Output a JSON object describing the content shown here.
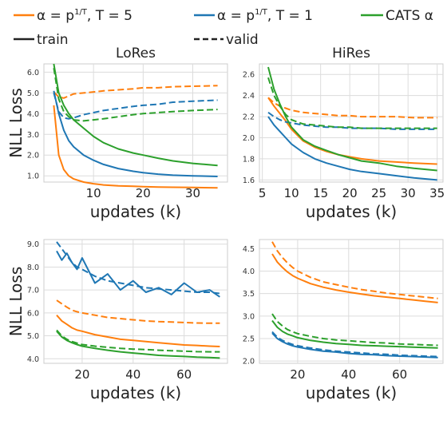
{
  "legend": {
    "entries": [
      {
        "label": "α = p^(1/T), T = 5",
        "color": "#ff7f0e",
        "dash": false
      },
      {
        "label": "α = p^(1/T), T = 1",
        "color": "#1f77b4",
        "dash": false
      },
      {
        "label": "CATS α",
        "color": "#2ca02c",
        "dash": false
      },
      {
        "label": "train",
        "color": "#222222",
        "dash": false
      },
      {
        "label": "valid",
        "color": "#222222",
        "dash": true
      }
    ]
  },
  "colors": {
    "t5": "#ff7f0e",
    "t1": "#1f77b4",
    "cats": "#2ca02c",
    "grid": "#dcdcdc"
  },
  "chart_data": [
    {
      "type": "line",
      "title": "LoRes",
      "xlabel": "updates (k)",
      "ylabel": "NLL Loss",
      "xlim": [
        0,
        37
      ],
      "ylim": [
        0.7,
        6.4
      ],
      "xticks": [
        10,
        20,
        30
      ],
      "yticks": [
        1.0,
        2.0,
        3.0,
        4.0,
        5.0,
        6.0
      ],
      "ytick_labels": [
        "1.0",
        "2.0",
        "3.0",
        "4.0",
        "5.0",
        "6.0"
      ],
      "grid": true,
      "x": [
        2,
        3,
        4,
        5,
        6,
        8,
        10,
        12,
        15,
        18,
        20,
        23,
        26,
        30,
        35
      ],
      "series": [
        {
          "color_key": "t5",
          "dash": false,
          "values": [
            4.4,
            2.0,
            1.3,
            1.0,
            0.85,
            0.7,
            0.62,
            0.56,
            0.52,
            0.5,
            0.48,
            0.46,
            0.45,
            0.44,
            0.42
          ]
        },
        {
          "color_key": "t5",
          "dash": true,
          "values": [
            5.05,
            4.8,
            4.75,
            4.85,
            4.95,
            5.0,
            5.05,
            5.1,
            5.15,
            5.2,
            5.25,
            5.25,
            5.3,
            5.32,
            5.35
          ]
        },
        {
          "color_key": "t1",
          "dash": false,
          "values": [
            5.1,
            4.0,
            3.2,
            2.7,
            2.4,
            2.0,
            1.75,
            1.55,
            1.35,
            1.22,
            1.15,
            1.08,
            1.03,
            1.0,
            0.97
          ]
        },
        {
          "color_key": "t1",
          "dash": true,
          "values": [
            5.0,
            4.1,
            3.8,
            3.75,
            3.8,
            3.95,
            4.05,
            4.15,
            4.25,
            4.35,
            4.4,
            4.45,
            4.55,
            4.6,
            4.65
          ]
        },
        {
          "color_key": "cats",
          "dash": false,
          "values": [
            6.4,
            5.0,
            4.4,
            4.0,
            3.7,
            3.3,
            2.9,
            2.6,
            2.3,
            2.1,
            2.0,
            1.85,
            1.72,
            1.6,
            1.5
          ]
        },
        {
          "color_key": "cats",
          "dash": true,
          "values": [
            6.2,
            4.7,
            4.1,
            3.85,
            3.7,
            3.65,
            3.7,
            3.75,
            3.85,
            3.95,
            4.0,
            4.05,
            4.1,
            4.15,
            4.2
          ]
        }
      ]
    },
    {
      "type": "line",
      "title": "HiRes",
      "xlabel": "updates (k)",
      "ylabel": "",
      "xlim": [
        4.5,
        36
      ],
      "ylim": [
        1.58,
        2.7
      ],
      "xticks": [
        5,
        10,
        15,
        20,
        25,
        30,
        35
      ],
      "yticks": [
        1.6,
        1.8,
        2.0,
        2.2,
        2.4,
        2.6
      ],
      "ytick_labels": [
        "1.6",
        "1.8",
        "2.0",
        "2.2",
        "2.4",
        "2.6"
      ],
      "grid": true,
      "x": [
        6,
        7,
        8,
        9,
        10,
        12,
        14,
        16,
        18,
        20,
        22,
        25,
        28,
        31,
        35
      ],
      "series": [
        {
          "color_key": "t5",
          "dash": false,
          "values": [
            2.38,
            2.3,
            2.23,
            2.16,
            2.08,
            1.97,
            1.91,
            1.87,
            1.84,
            1.82,
            1.8,
            1.78,
            1.77,
            1.76,
            1.75
          ]
        },
        {
          "color_key": "t5",
          "dash": true,
          "values": [
            2.38,
            2.33,
            2.3,
            2.28,
            2.26,
            2.24,
            2.23,
            2.22,
            2.21,
            2.21,
            2.2,
            2.2,
            2.2,
            2.19,
            2.19
          ]
        },
        {
          "color_key": "t1",
          "dash": false,
          "values": [
            2.2,
            2.12,
            2.06,
            2.0,
            1.94,
            1.86,
            1.8,
            1.76,
            1.73,
            1.7,
            1.68,
            1.66,
            1.64,
            1.62,
            1.6
          ]
        },
        {
          "color_key": "t1",
          "dash": true,
          "values": [
            2.24,
            2.2,
            2.17,
            2.15,
            2.14,
            2.12,
            2.11,
            2.1,
            2.1,
            2.09,
            2.09,
            2.09,
            2.08,
            2.08,
            2.08
          ]
        },
        {
          "color_key": "cats",
          "dash": false,
          "values": [
            2.67,
            2.46,
            2.32,
            2.2,
            2.1,
            1.98,
            1.92,
            1.88,
            1.84,
            1.81,
            1.78,
            1.76,
            1.73,
            1.71,
            1.69
          ]
        },
        {
          "color_key": "cats",
          "dash": true,
          "values": [
            2.57,
            2.4,
            2.3,
            2.22,
            2.17,
            2.13,
            2.12,
            2.11,
            2.1,
            2.1,
            2.09,
            2.09,
            2.09,
            2.09,
            2.09
          ]
        }
      ]
    },
    {
      "type": "line",
      "title": "",
      "xlabel": "updates (k)",
      "ylabel": "NLL Loss",
      "xlim": [
        5,
        77
      ],
      "ylim": [
        3.8,
        9.2
      ],
      "xticks": [
        20,
        40,
        60
      ],
      "yticks": [
        4.0,
        5.0,
        6.0,
        7.0,
        8.0,
        9.0
      ],
      "ytick_labels": [
        "4.0",
        "5.0",
        "6.0",
        "7.0",
        "8.0",
        "9.0"
      ],
      "grid": true,
      "x": [
        10,
        12,
        14,
        16,
        18,
        20,
        25,
        30,
        35,
        40,
        45,
        50,
        55,
        60,
        65,
        70,
        74
      ],
      "series": [
        {
          "color_key": "t5",
          "dash": false,
          "values": [
            5.9,
            5.65,
            5.5,
            5.35,
            5.25,
            5.2,
            5.05,
            4.95,
            4.85,
            4.8,
            4.75,
            4.7,
            4.65,
            4.6,
            4.58,
            4.55,
            4.53
          ]
        },
        {
          "color_key": "t5",
          "dash": true,
          "values": [
            6.55,
            6.4,
            6.25,
            6.12,
            6.05,
            6.0,
            5.9,
            5.8,
            5.75,
            5.7,
            5.65,
            5.62,
            5.6,
            5.58,
            5.56,
            5.55,
            5.55
          ]
        },
        {
          "color_key": "t1",
          "dash": false,
          "values": [
            8.7,
            8.3,
            8.6,
            8.2,
            7.9,
            8.4,
            7.3,
            7.7,
            7.0,
            7.4,
            6.9,
            7.1,
            6.8,
            7.3,
            6.9,
            7.0,
            6.7
          ]
        },
        {
          "color_key": "t1",
          "dash": true,
          "values": [
            9.1,
            8.8,
            8.5,
            8.2,
            8.0,
            7.9,
            7.6,
            7.4,
            7.3,
            7.2,
            7.1,
            7.05,
            7.0,
            6.95,
            6.9,
            6.9,
            6.85
          ]
        },
        {
          "color_key": "cats",
          "dash": false,
          "values": [
            5.2,
            4.95,
            4.8,
            4.7,
            4.62,
            4.55,
            4.45,
            4.37,
            4.3,
            4.25,
            4.2,
            4.15,
            4.12,
            4.1,
            4.07,
            4.05,
            4.03
          ]
        },
        {
          "color_key": "cats",
          "dash": true,
          "values": [
            5.25,
            5.0,
            4.85,
            4.75,
            4.68,
            4.62,
            4.55,
            4.5,
            4.45,
            4.42,
            4.4,
            4.37,
            4.35,
            4.33,
            4.31,
            4.3,
            4.3
          ]
        }
      ]
    },
    {
      "type": "line",
      "title": "",
      "xlabel": "updates (k)",
      "ylabel": "",
      "xlim": [
        5,
        77
      ],
      "ylim": [
        1.95,
        4.7
      ],
      "xticks": [
        20,
        40,
        60
      ],
      "yticks": [
        2.0,
        2.5,
        3.0,
        3.5,
        4.0,
        4.5
      ],
      "ytick_labels": [
        "2.0",
        "2.5",
        "3.0",
        "3.5",
        "4.0",
        "4.5"
      ],
      "grid": true,
      "x": [
        10,
        12,
        14,
        16,
        18,
        20,
        25,
        30,
        35,
        40,
        45,
        50,
        55,
        60,
        65,
        70,
        75
      ],
      "series": [
        {
          "color_key": "t5",
          "dash": false,
          "values": [
            4.38,
            4.2,
            4.08,
            3.98,
            3.9,
            3.84,
            3.72,
            3.64,
            3.58,
            3.53,
            3.49,
            3.45,
            3.42,
            3.39,
            3.36,
            3.33,
            3.3
          ]
        },
        {
          "color_key": "t5",
          "dash": true,
          "values": [
            4.65,
            4.45,
            4.3,
            4.18,
            4.08,
            4.0,
            3.86,
            3.76,
            3.7,
            3.64,
            3.59,
            3.55,
            3.51,
            3.48,
            3.45,
            3.42,
            3.39
          ]
        },
        {
          "color_key": "t1",
          "dash": false,
          "values": [
            2.62,
            2.5,
            2.43,
            2.38,
            2.34,
            2.31,
            2.26,
            2.22,
            2.2,
            2.17,
            2.15,
            2.14,
            2.12,
            2.11,
            2.1,
            2.09,
            2.08
          ]
        },
        {
          "color_key": "t1",
          "dash": true,
          "values": [
            2.65,
            2.53,
            2.46,
            2.41,
            2.37,
            2.34,
            2.29,
            2.25,
            2.22,
            2.2,
            2.18,
            2.16,
            2.15,
            2.13,
            2.12,
            2.11,
            2.1
          ]
        },
        {
          "color_key": "cats",
          "dash": false,
          "values": [
            2.9,
            2.75,
            2.66,
            2.6,
            2.56,
            2.52,
            2.46,
            2.42,
            2.39,
            2.37,
            2.35,
            2.34,
            2.33,
            2.32,
            2.31,
            2.3,
            2.29
          ]
        },
        {
          "color_key": "cats",
          "dash": true,
          "values": [
            3.05,
            2.88,
            2.78,
            2.7,
            2.65,
            2.61,
            2.55,
            2.5,
            2.47,
            2.45,
            2.43,
            2.41,
            2.4,
            2.38,
            2.37,
            2.36,
            2.35
          ]
        }
      ]
    }
  ]
}
